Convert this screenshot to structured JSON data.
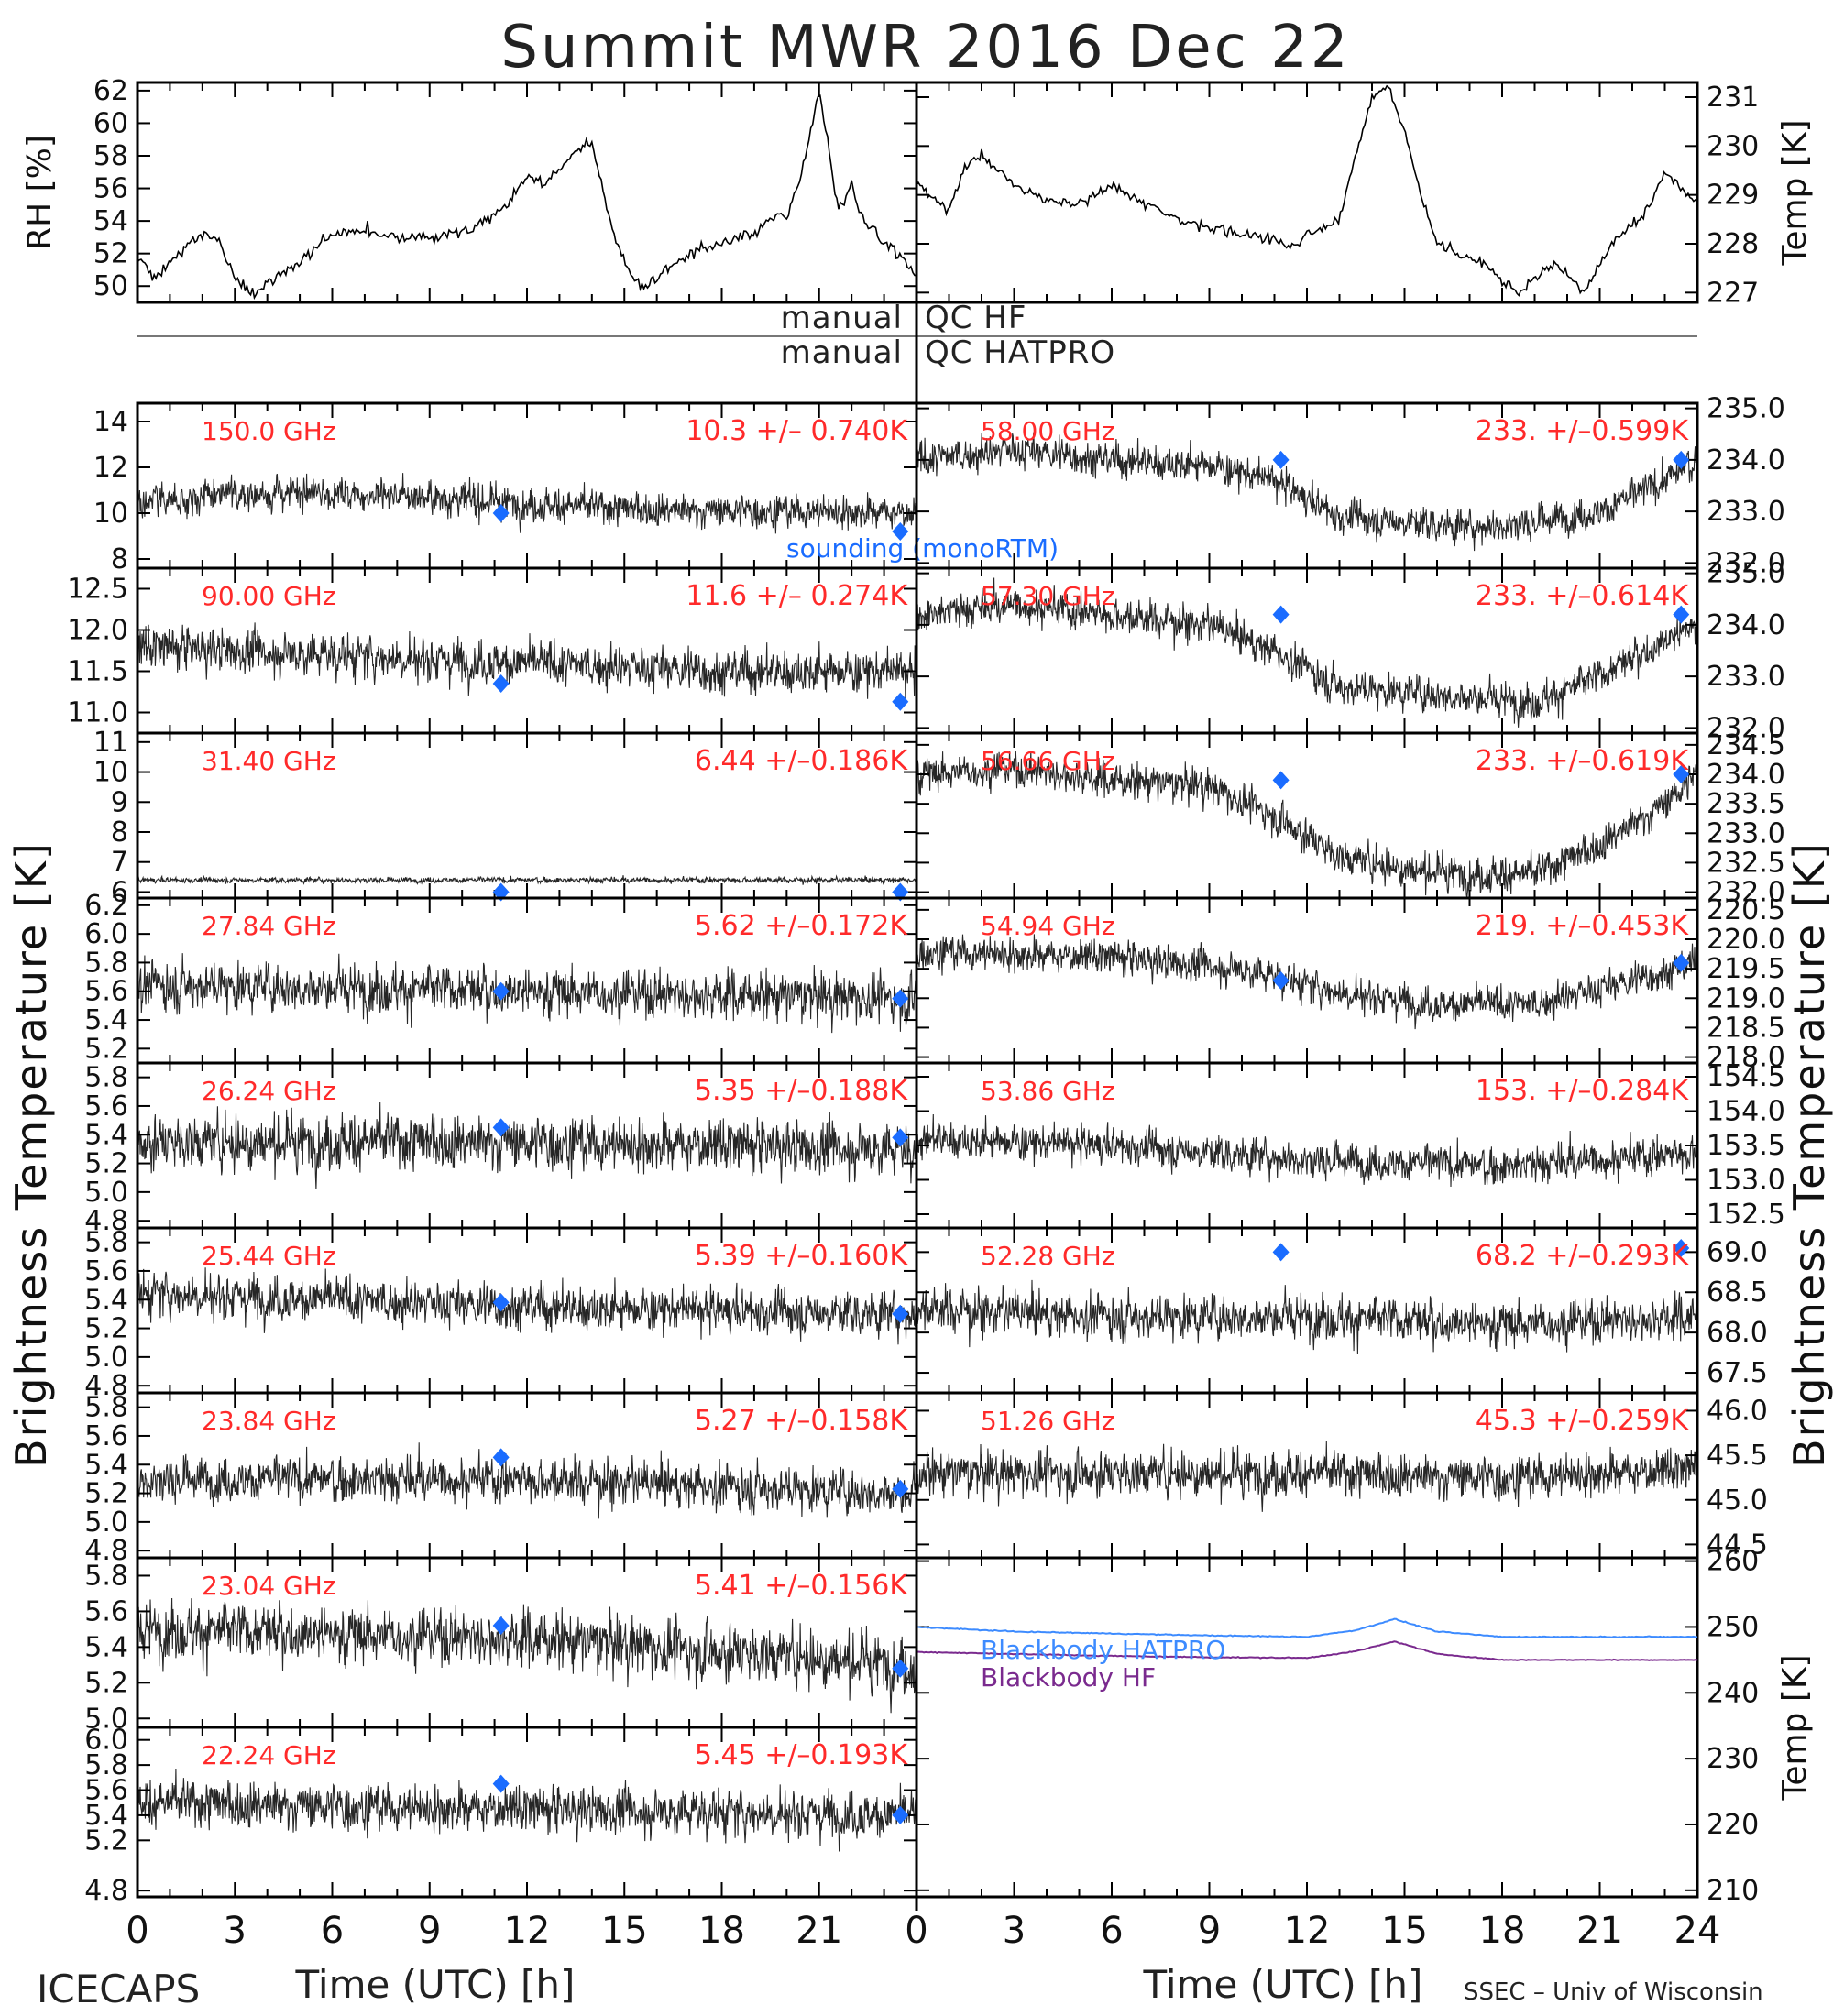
{
  "title": "Summit MWR 2016 Dec 22",
  "qc_labels": {
    "manual_hf": "manual",
    "qc_hf": "QC HF",
    "manual_hatpro": "manual",
    "qc_hatpro": "QC HATPRO"
  },
  "footer": {
    "left": "ICECAPS",
    "credit": "SSEC – Univ of Wisconsin"
  },
  "bt_ylabel": "Brightness Temperature [K]",
  "colors": {
    "data": "#000000",
    "label": "#ff2a2a",
    "sounding": "#1a6cff",
    "bb_hatpro": "#3d8bff",
    "bb_hf": "#7a2a8e"
  },
  "chart_data": [
    {
      "type": "line",
      "name": "met_rh",
      "ylabel": "RH [%]",
      "xlabel": "",
      "xlim": [
        0,
        24
      ],
      "ylim": [
        49,
        62.5
      ],
      "yticks": [
        62,
        60,
        58,
        56,
        54,
        52,
        50
      ],
      "x": [
        0,
        0.5,
        1,
        1.5,
        2,
        2.5,
        3,
        3.5,
        4,
        5,
        6,
        7,
        8,
        9,
        10,
        11,
        11.5,
        12,
        12.5,
        13,
        13.5,
        14,
        14.5,
        15,
        15.5,
        16,
        17,
        18,
        19,
        19.5,
        20,
        20.5,
        21,
        21.3,
        21.6,
        22,
        22.3,
        22.6,
        23,
        23.5,
        24
      ],
      "y": [
        51.5,
        50.6,
        51.5,
        52.5,
        53.2,
        52.7,
        50.5,
        49.6,
        50.2,
        51.5,
        53.2,
        53.5,
        52.9,
        53,
        53.3,
        54.3,
        55.2,
        56.8,
        56.2,
        57.2,
        58.3,
        58.8,
        54.5,
        51.5,
        49.9,
        50.6,
        51.9,
        52.6,
        53.3,
        54.3,
        54.1,
        57.5,
        62,
        58.5,
        54.5,
        56.3,
        54.3,
        53.5,
        52.8,
        51.8,
        50.5
      ]
    },
    {
      "type": "line",
      "name": "met_temp",
      "ylabel": "Temp [K]",
      "xlabel": "",
      "xlim": [
        0,
        24
      ],
      "ylim": [
        226.8,
        231.3
      ],
      "yticks": [
        231,
        230,
        229,
        228,
        227
      ],
      "x": [
        0,
        0.5,
        1,
        1.5,
        2,
        3,
        4,
        5,
        6,
        7,
        8,
        9,
        10,
        11,
        11.5,
        12,
        13,
        13.5,
        14,
        14.5,
        15,
        15.5,
        16,
        17,
        17.5,
        18,
        18.5,
        19,
        19.5,
        20,
        20.5,
        21,
        21.5,
        22,
        22.5,
        23,
        23.5,
        24
      ],
      "y": [
        229.3,
        228.9,
        228.7,
        229.6,
        229.8,
        229.2,
        228.9,
        228.8,
        229.2,
        228.8,
        228.5,
        228.3,
        228.2,
        228.1,
        227.9,
        228.2,
        228.5,
        229.8,
        231.0,
        231.2,
        230.3,
        229.0,
        228.0,
        227.7,
        227.6,
        227.2,
        227.0,
        227.3,
        227.6,
        227.4,
        227.0,
        227.6,
        228.1,
        228.4,
        228.7,
        229.5,
        229.1,
        228.9
      ]
    },
    {
      "type": "scatter",
      "name": "150.0 GHz",
      "label": "150.0 GHz",
      "stat": "10.3 +/– 0.740K",
      "ylim": [
        7.6,
        14.8
      ],
      "yticks": [
        "14",
        "12",
        "10",
        "8"
      ],
      "noise": 0.74,
      "trend_x": [
        0,
        3,
        6,
        9,
        12,
        15,
        18,
        21,
        24
      ],
      "trend_y": [
        10.5,
        10.8,
        10.9,
        10.7,
        10.4,
        10.2,
        10.1,
        10.1,
        10.0
      ],
      "sounding_x": [
        11.2,
        23.5
      ],
      "sounding_y": [
        10.0,
        9.2
      ],
      "note": "sounding (monoRTM)"
    },
    {
      "type": "scatter",
      "name": "90.00 GHz",
      "label": "90.00 GHz",
      "stat": "11.6 +/– 0.274K",
      "ylim": [
        10.75,
        12.75
      ],
      "yticks": [
        "12.5",
        "12.0",
        "11.5",
        "11.0"
      ],
      "noise": 0.27,
      "trend_x": [
        0,
        6,
        12,
        18,
        24
      ],
      "trend_y": [
        11.8,
        11.7,
        11.6,
        11.5,
        11.5
      ],
      "sounding_x": [
        11.2,
        23.5
      ],
      "sounding_y": [
        11.35,
        11.13
      ]
    },
    {
      "type": "scatter",
      "name": "31.40 GHz",
      "label": "31.40 GHz",
      "stat": "6.44 +/–0.186K",
      "ylim": [
        5.8,
        11.3
      ],
      "yticks": [
        "11",
        "10",
        "9",
        "8",
        "7",
        "6"
      ],
      "noise": 0.1,
      "trend_x": [
        0,
        12,
        24
      ],
      "trend_y": [
        6.4,
        6.4,
        6.4
      ],
      "sounding_x": [
        11.2,
        23.5
      ],
      "sounding_y": [
        6.0,
        6.0
      ]
    },
    {
      "type": "scatter",
      "name": "27.84 GHz",
      "label": "27.84 GHz",
      "stat": "5.62 +/–0.172K",
      "ylim": [
        5.1,
        6.25
      ],
      "yticks": [
        "6.2",
        "6.0",
        "5.8",
        "5.6",
        "5.4",
        "5.2"
      ],
      "noise": 0.17,
      "trend_x": [
        0,
        12,
        24
      ],
      "trend_y": [
        5.65,
        5.6,
        5.55
      ],
      "sounding_x": [
        11.2,
        23.5
      ],
      "sounding_y": [
        5.6,
        5.55
      ]
    },
    {
      "type": "scatter",
      "name": "26.24 GHz",
      "label": "26.24 GHz",
      "stat": "5.35 +/–0.188K",
      "ylim": [
        4.75,
        5.9
      ],
      "yticks": [
        "5.8",
        "5.6",
        "5.4",
        "5.2",
        "5.0",
        "4.8"
      ],
      "noise": 0.19,
      "trend_x": [
        0,
        12,
        24
      ],
      "trend_y": [
        5.35,
        5.35,
        5.3
      ],
      "sounding_x": [
        11.2,
        23.5
      ],
      "sounding_y": [
        5.45,
        5.38
      ]
    },
    {
      "type": "scatter",
      "name": "25.44 GHz",
      "label": "25.44 GHz",
      "stat": "5.39 +/–0.160K",
      "ylim": [
        4.75,
        5.9
      ],
      "yticks": [
        "5.8",
        "5.6",
        "5.4",
        "5.2",
        "5.0",
        "4.8"
      ],
      "noise": 0.16,
      "trend_x": [
        0,
        12,
        24
      ],
      "trend_y": [
        5.45,
        5.35,
        5.3
      ],
      "sounding_x": [
        11.2,
        23.5
      ],
      "sounding_y": [
        5.38,
        5.3
      ]
    },
    {
      "type": "scatter",
      "name": "23.84 GHz",
      "label": "23.84 GHz",
      "stat": "5.27 +/–0.158K",
      "ylim": [
        4.75,
        5.9
      ],
      "yticks": [
        "5.8",
        "5.6",
        "5.4",
        "5.2",
        "5.0",
        "4.8"
      ],
      "noise": 0.16,
      "trend_x": [
        0,
        12,
        24
      ],
      "trend_y": [
        5.3,
        5.3,
        5.2
      ],
      "sounding_x": [
        11.2,
        23.5
      ],
      "sounding_y": [
        5.45,
        5.23
      ]
    },
    {
      "type": "scatter",
      "name": "23.04 GHz",
      "label": "23.04 GHz",
      "stat": "5.41 +/–0.156K",
      "ylim": [
        4.95,
        5.9
      ],
      "yticks": [
        "5.8",
        "5.6",
        "5.4",
        "5.2",
        "5.0"
      ],
      "noise": 0.16,
      "trend_x": [
        0,
        12,
        24
      ],
      "trend_y": [
        5.5,
        5.45,
        5.3
      ],
      "sounding_x": [
        11.2,
        23.5
      ],
      "sounding_y": [
        5.52,
        5.28
      ]
    },
    {
      "type": "scatter",
      "name": "22.24 GHz",
      "label": "22.24 GHz",
      "stat": "5.45 +/–0.193K",
      "ylim": [
        4.75,
        6.1
      ],
      "yticks": [
        "6.0",
        "5.8",
        "5.6",
        "5.4",
        "5.2",
        "4.8"
      ],
      "noise": 0.19,
      "trend_x": [
        0,
        12,
        24
      ],
      "trend_y": [
        5.5,
        5.45,
        5.4
      ],
      "sounding_x": [
        11.2,
        23.5
      ],
      "sounding_y": [
        5.65,
        5.4
      ]
    },
    {
      "type": "scatter",
      "name": "58.00 GHz",
      "label": "58.00 GHz",
      "stat": "233. +/–0.599K",
      "ylim": [
        231.9,
        235.1
      ],
      "yticks": [
        "235.0",
        "234.0",
        "233.0",
        "232.0"
      ],
      "noise": 0.35,
      "trend_x": [
        0,
        3,
        6,
        9,
        11,
        13,
        15,
        17,
        19,
        21,
        23,
        24
      ],
      "trend_y": [
        234.0,
        234.2,
        234.0,
        233.9,
        233.6,
        232.9,
        232.8,
        232.7,
        232.8,
        233.0,
        233.6,
        234.0
      ],
      "sounding_x": [
        11.2,
        23.5
      ],
      "sounding_y": [
        234.0,
        234.0
      ]
    },
    {
      "type": "scatter",
      "name": "57.30 GHz",
      "label": "57.30 GHz",
      "stat": "233. +/–0.614K",
      "ylim": [
        231.9,
        235.1
      ],
      "yticks": [
        "235.0",
        "234.0",
        "233.0",
        "232.0"
      ],
      "noise": 0.35,
      "trend_x": [
        0,
        3,
        6,
        9,
        11,
        13,
        15,
        17,
        19,
        21,
        23,
        24
      ],
      "trend_y": [
        234.2,
        234.4,
        234.2,
        234.0,
        233.5,
        232.8,
        232.7,
        232.6,
        232.5,
        233.0,
        233.7,
        234.0
      ],
      "sounding_x": [
        11.2,
        23.5
      ],
      "sounding_y": [
        234.2,
        234.2
      ]
    },
    {
      "type": "scatter",
      "name": "56.66 GHz",
      "label": "56.66 GHz",
      "stat": "233. +/–0.619K",
      "ylim": [
        231.9,
        234.7
      ],
      "yticks": [
        "234.5",
        "234.0",
        "233.5",
        "233.0",
        "232.5",
        "232.0"
      ],
      "noise": 0.3,
      "trend_x": [
        0,
        3,
        6,
        9,
        11,
        13,
        15,
        17,
        19,
        21,
        23,
        24
      ],
      "trend_y": [
        234.0,
        234.1,
        233.9,
        233.8,
        233.3,
        232.6,
        232.4,
        232.3,
        232.3,
        232.8,
        233.5,
        234.0
      ],
      "sounding_x": [
        11.2,
        23.5
      ],
      "sounding_y": [
        233.9,
        234.0
      ]
    },
    {
      "type": "scatter",
      "name": "54.94 GHz",
      "label": "54.94 GHz",
      "stat": "219. +/–0.453K",
      "ylim": [
        217.9,
        220.7
      ],
      "yticks": [
        "220.5",
        "220.0",
        "219.5",
        "219.0",
        "218.5",
        "218.0"
      ],
      "noise": 0.3,
      "trend_x": [
        0,
        6,
        10,
        13,
        16,
        19,
        22,
        24
      ],
      "trend_y": [
        219.8,
        219.7,
        219.5,
        219.1,
        218.9,
        218.9,
        219.3,
        219.6
      ],
      "sounding_x": [
        11.2,
        23.5
      ],
      "sounding_y": [
        219.3,
        219.6
      ]
    },
    {
      "type": "scatter",
      "name": "53.86 GHz",
      "label": "53.86 GHz",
      "stat": "153. +/–0.284K",
      "ylim": [
        152.3,
        154.7
      ],
      "yticks": [
        "154.5",
        "154.0",
        "153.5",
        "153.0",
        "152.5"
      ],
      "noise": 0.28,
      "trend_x": [
        0,
        6,
        12,
        18,
        24
      ],
      "trend_y": [
        153.6,
        153.5,
        153.3,
        153.2,
        153.4
      ],
      "sounding_x": [],
      "sounding_y": []
    },
    {
      "type": "scatter",
      "name": "52.28 GHz",
      "label": "52.28 GHz",
      "stat": "68.2 +/–0.293K",
      "ylim": [
        67.25,
        69.3
      ],
      "yticks": [
        "69.0",
        "68.5",
        "68.0",
        "67.5"
      ],
      "noise": 0.28,
      "trend_x": [
        0,
        6,
        12,
        18,
        24
      ],
      "trend_y": [
        68.3,
        68.2,
        68.2,
        68.1,
        68.2
      ],
      "sounding_x": [
        11.2,
        23.5
      ],
      "sounding_y": [
        69.0,
        69.05
      ]
    },
    {
      "type": "scatter",
      "name": "51.26 GHz",
      "label": "51.26 GHz",
      "stat": "45.3 +/–0.259K",
      "ylim": [
        44.35,
        46.2
      ],
      "yticks": [
        "46.0",
        "45.5",
        "45.0",
        "44.5"
      ],
      "noise": 0.25,
      "trend_x": [
        0,
        6,
        12,
        18,
        24
      ],
      "trend_y": [
        45.3,
        45.3,
        45.3,
        45.25,
        45.35
      ],
      "sounding_x": [],
      "sounding_y": []
    },
    {
      "type": "line",
      "name": "blackbody",
      "ylabel": "Temp [K]",
      "xlabel": "",
      "xlim": [
        0,
        24
      ],
      "ylim": [
        209,
        260.5
      ],
      "yticks": [
        "260",
        "250",
        "240",
        "230",
        "220",
        "210"
      ],
      "series": [
        {
          "name": "Blackbody HATPRO",
          "x": [
            0,
            3,
            6,
            9,
            12,
            13.5,
            14.7,
            16,
            18,
            21,
            24
          ],
          "y": [
            250.0,
            249.3,
            249.0,
            248.7,
            248.5,
            249.5,
            251.2,
            249.3,
            248.5,
            248.5,
            248.5
          ]
        },
        {
          "name": "Blackbody HF",
          "x": [
            0,
            3,
            6,
            9,
            12,
            13.5,
            14.7,
            16,
            18,
            21,
            24
          ],
          "y": [
            246.2,
            245.9,
            245.6,
            245.4,
            245.3,
            246.3,
            247.8,
            245.9,
            245.0,
            245.0,
            245.0
          ]
        }
      ]
    }
  ],
  "xaxis": {
    "label": "Time (UTC) [h]",
    "ticks_left": [
      "0",
      "3",
      "6",
      "9",
      "12",
      "15",
      "18",
      "21",
      ""
    ],
    "ticks_right": [
      "0",
      "3",
      "6",
      "9",
      "12",
      "15",
      "18",
      "21",
      "24"
    ]
  }
}
